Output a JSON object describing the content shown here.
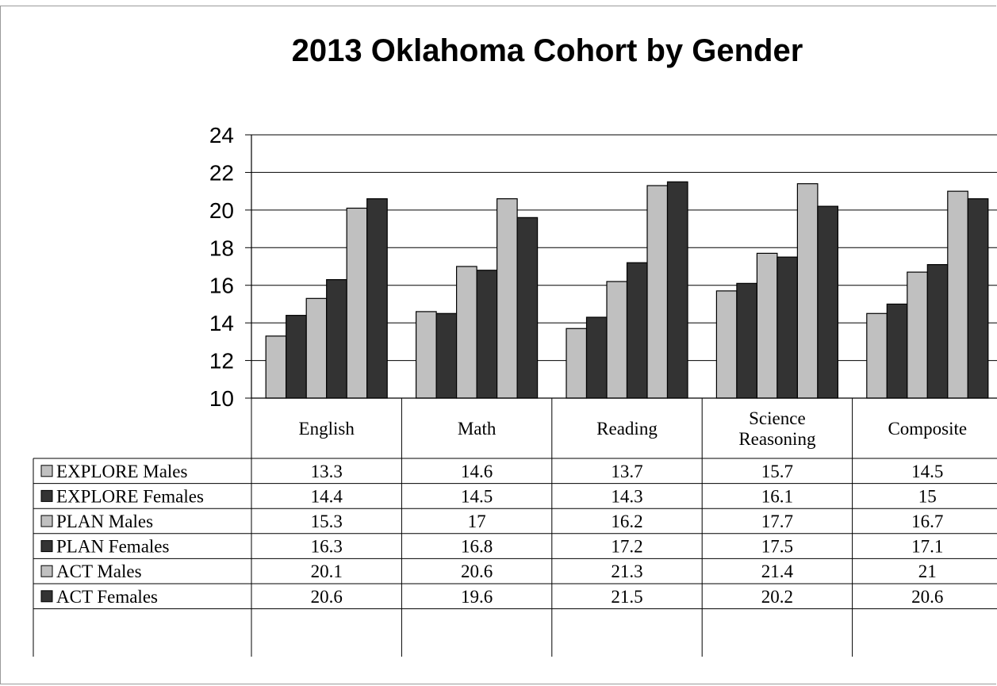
{
  "chart_data": {
    "type": "bar",
    "title": "2013 Oklahoma Cohort by Gender",
    "categories": [
      "English",
      "Math",
      "Reading",
      "Science Reasoning",
      "Composite"
    ],
    "category_lines": [
      [
        "English"
      ],
      [
        "Math"
      ],
      [
        "Reading"
      ],
      [
        "Science",
        "Reasoning"
      ],
      [
        "Composite"
      ]
    ],
    "ylim": [
      10,
      24
    ],
    "yticks": [
      10,
      12,
      14,
      16,
      18,
      20,
      22,
      24
    ],
    "grid": true,
    "legend_placement": "data-table-left",
    "series": [
      {
        "name": "EXPLORE Males",
        "color": "#c0c0c0",
        "values": [
          13.3,
          14.6,
          13.7,
          15.7,
          14.5
        ],
        "labels": [
          "13.3",
          "14.6",
          "13.7",
          "15.7",
          "14.5"
        ]
      },
      {
        "name": "EXPLORE Females",
        "color": "#333333",
        "values": [
          14.4,
          14.5,
          14.3,
          16.1,
          15
        ],
        "labels": [
          "14.4",
          "14.5",
          "14.3",
          "16.1",
          "15"
        ]
      },
      {
        "name": "PLAN Males",
        "color": "#c0c0c0",
        "values": [
          15.3,
          17,
          16.2,
          17.7,
          16.7
        ],
        "labels": [
          "15.3",
          "17",
          "16.2",
          "17.7",
          "16.7"
        ]
      },
      {
        "name": "PLAN Females",
        "color": "#333333",
        "values": [
          16.3,
          16.8,
          17.2,
          17.5,
          17.1
        ],
        "labels": [
          "16.3",
          "16.8",
          "17.2",
          "17.5",
          "17.1"
        ]
      },
      {
        "name": "ACT Males",
        "color": "#c0c0c0",
        "values": [
          20.1,
          20.6,
          21.3,
          21.4,
          21
        ],
        "labels": [
          "20.1",
          "20.6",
          "21.3",
          "21.4",
          "21"
        ]
      },
      {
        "name": "ACT Females",
        "color": "#333333",
        "values": [
          20.6,
          19.6,
          21.5,
          20.2,
          20.6
        ],
        "labels": [
          "20.6",
          "19.6",
          "21.5",
          "20.2",
          "20.6"
        ]
      }
    ]
  }
}
